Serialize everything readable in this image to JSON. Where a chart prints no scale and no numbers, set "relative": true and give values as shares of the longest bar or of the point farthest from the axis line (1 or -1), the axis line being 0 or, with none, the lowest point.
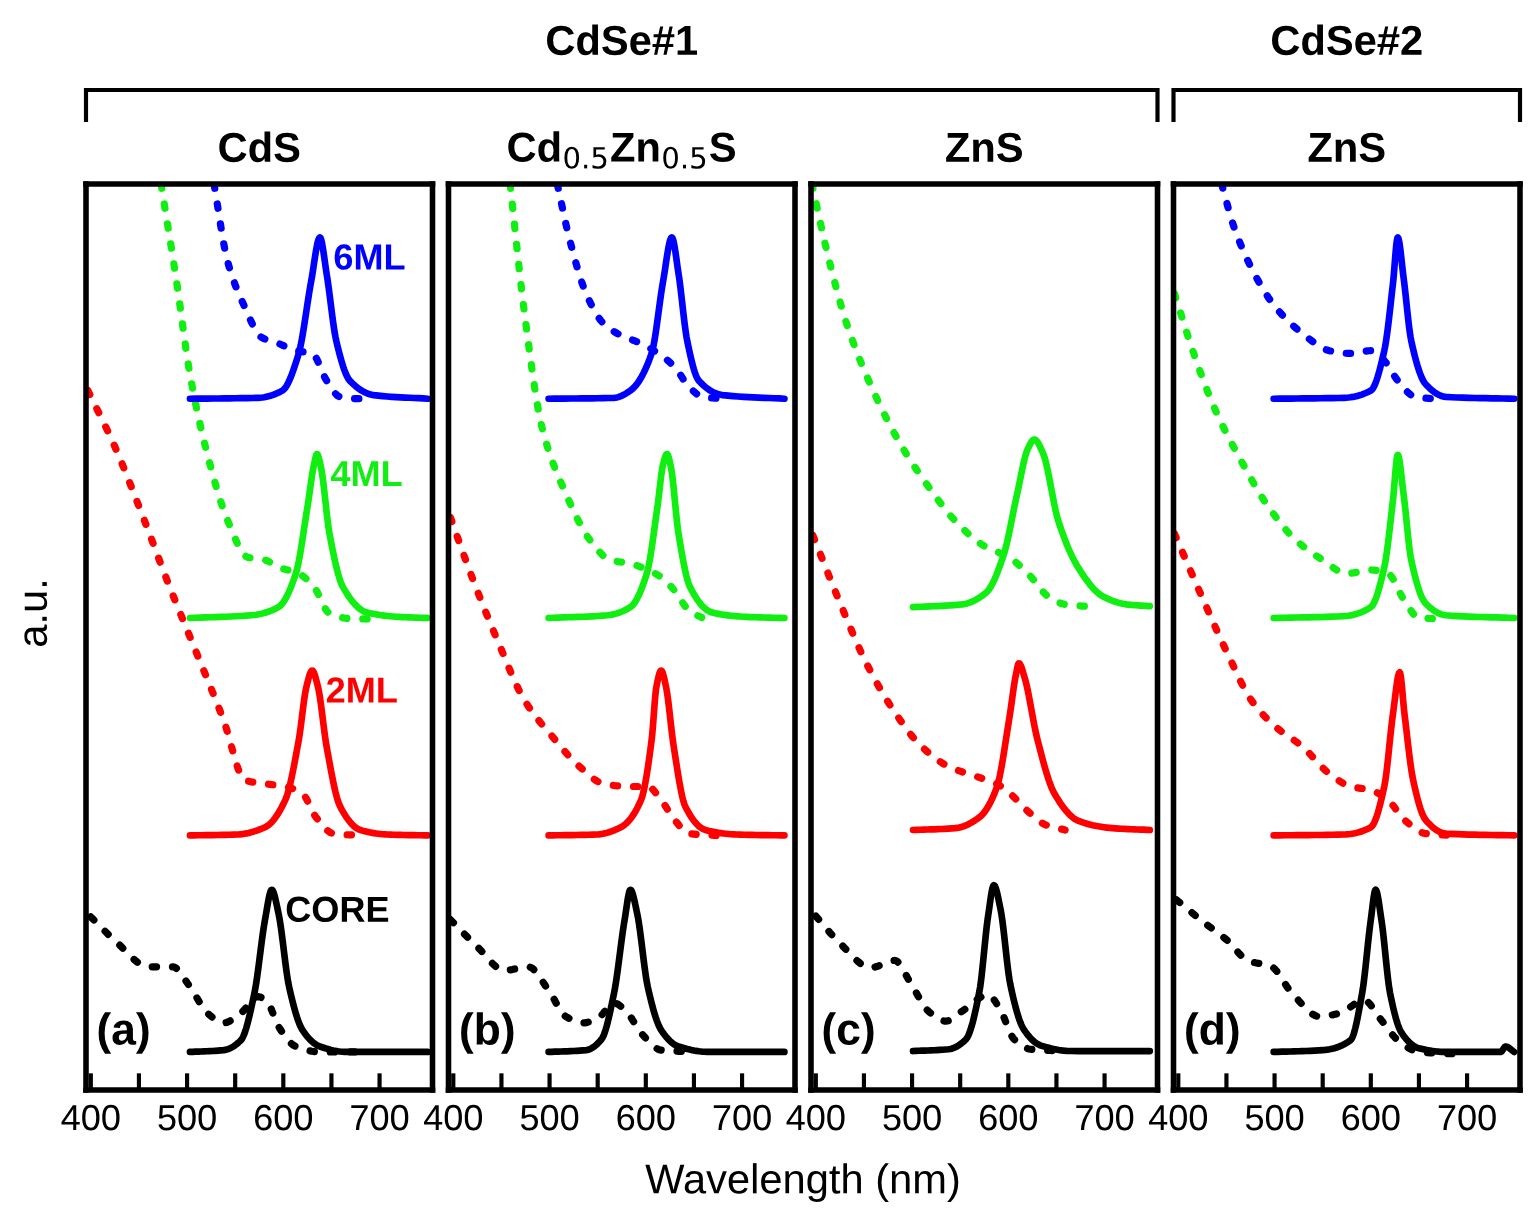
{
  "chart_data": [
    {
      "type": "line",
      "title": "CdS",
      "xlabel": "Wavelength (nm)",
      "ylabel": "a.u.",
      "relative": true,
      "annotations": [
        "(a)",
        "CdSe#1"
      ],
      "xlim": [
        395,
        755
      ],
      "xticks": [
        400,
        {
          "value": 450,
          "label": null
        },
        500,
        {
          "value": 550,
          "label": null
        },
        600,
        {
          "value": 650,
          "label": null
        },
        700
      ],
      "series": [
        {
          "name": "CORE",
          "color": "#000000",
          "line_style": "solid",
          "x": [
            503,
            538,
            556,
            570,
            581,
            588,
            595,
            606,
            620,
            638,
            666,
            750
          ],
          "values": [
            0.042,
            0.044,
            0.055,
            0.107,
            0.188,
            0.221,
            0.195,
            0.114,
            0.066,
            0.048,
            0.042,
            0.042
          ]
        },
        {
          "color": "#000000",
          "line_style": "dotted",
          "x": [
            400,
            425,
            460,
            485,
            503,
            521,
            538,
            556,
            574,
            584,
            595,
            613,
            638,
            687
          ],
          "values": [
            0.191,
            0.165,
            0.136,
            0.136,
            0.114,
            0.085,
            0.074,
            0.085,
            0.103,
            0.096,
            0.07,
            0.048,
            0.042,
            0.042
          ]
        },
        {
          "name": "2ML",
          "color": "#ff0000",
          "line_style": "solid",
          "x": [
            503,
            552,
            581,
            602,
            616,
            624,
            630,
            636,
            645,
            659,
            680,
            708,
            750
          ],
          "values": [
            0.281,
            0.282,
            0.29,
            0.32,
            0.386,
            0.445,
            0.463,
            0.445,
            0.379,
            0.313,
            0.287,
            0.282,
            0.281
          ]
        },
        {
          "color": "#ff0000",
          "line_style": "dotted",
          "x": [
            397,
            425,
            453,
            482,
            510,
            538,
            560,
            581,
            602,
            620,
            634,
            652,
            680
          ],
          "values": [
            0.772,
            0.71,
            0.636,
            0.555,
            0.482,
            0.408,
            0.342,
            0.338,
            0.335,
            0.327,
            0.301,
            0.283,
            0.281
          ]
        },
        {
          "name": "4ML",
          "color": "#11ee11",
          "line_style": "solid",
          "x": [
            503,
            567,
            595,
            613,
            625,
            632,
            635,
            639,
            648,
            662,
            687,
            723,
            750
          ],
          "values": [
            0.521,
            0.524,
            0.533,
            0.57,
            0.643,
            0.691,
            0.702,
            0.688,
            0.614,
            0.555,
            0.527,
            0.522,
            0.521
          ]
        },
        {
          "color": "#11ee11",
          "line_style": "dotted",
          "x": [
            473,
            489,
            503,
            521,
            542,
            563,
            581,
            595,
            616,
            632,
            648,
            673,
            694
          ],
          "values": [
            1.0,
            0.893,
            0.79,
            0.702,
            0.629,
            0.588,
            0.585,
            0.577,
            0.57,
            0.555,
            0.526,
            0.52,
            0.52
          ]
        },
        {
          "name": "6ML",
          "color": "#0000ff",
          "line_style": "solid",
          "x": [
            503,
            574,
            599,
            616,
            629,
            638,
            645,
            655,
            669,
            694,
            750
          ],
          "values": [
            0.763,
            0.764,
            0.772,
            0.813,
            0.893,
            0.941,
            0.901,
            0.827,
            0.783,
            0.767,
            0.763
          ]
        },
        {
          "color": "#0000ff",
          "line_style": "dotted",
          "x": [
            528,
            542,
            560,
            577,
            595,
            613,
            630,
            645,
            659,
            680,
            694
          ],
          "values": [
            1.0,
            0.915,
            0.864,
            0.831,
            0.824,
            0.816,
            0.813,
            0.783,
            0.765,
            0.763,
            0.763
          ]
        }
      ]
    },
    {
      "type": "line",
      "title": "Cd$_{0.5}$Zn$_{0.5}$S",
      "relative": true,
      "annotations": [
        "(b)"
      ],
      "xlim": [
        395,
        755
      ],
      "xticks": [
        400,
        {
          "value": 450,
          "label": null
        },
        500,
        {
          "value": 550,
          "label": null
        },
        600,
        {
          "value": 650,
          "label": null
        },
        700
      ],
      "series": [
        {
          "color": "#000000",
          "line_style": "solid",
          "x": [
            499,
            538,
            554,
            567,
            578,
            584,
            591,
            602,
            616,
            634,
            666,
            744
          ],
          "values": [
            0.042,
            0.044,
            0.056,
            0.107,
            0.188,
            0.221,
            0.195,
            0.114,
            0.066,
            0.048,
            0.042,
            0.042
          ]
        },
        {
          "color": "#000000",
          "line_style": "dotted",
          "x": [
            397,
            425,
            453,
            478,
            499,
            517,
            535,
            552,
            567,
            581,
            595,
            616,
            652
          ],
          "values": [
            0.188,
            0.158,
            0.132,
            0.136,
            0.11,
            0.081,
            0.074,
            0.081,
            0.096,
            0.085,
            0.063,
            0.044,
            0.042
          ]
        },
        {
          "color": "#ff0000",
          "line_style": "solid",
          "x": [
            499,
            549,
            574,
            595,
            606,
            611,
            616,
            621,
            629,
            641,
            662,
            694,
            744
          ],
          "values": [
            0.281,
            0.282,
            0.29,
            0.32,
            0.386,
            0.445,
            0.463,
            0.445,
            0.379,
            0.313,
            0.287,
            0.282,
            0.281
          ]
        },
        {
          "color": "#ff0000",
          "line_style": "dotted",
          "x": [
            397,
            418,
            446,
            474,
            503,
            531,
            556,
            581,
            602,
            616,
            630,
            645,
            673
          ],
          "values": [
            0.632,
            0.57,
            0.496,
            0.43,
            0.39,
            0.357,
            0.338,
            0.335,
            0.335,
            0.32,
            0.298,
            0.283,
            0.281
          ]
        },
        {
          "color": "#11ee11",
          "line_style": "solid",
          "x": [
            499,
            560,
            584,
            601,
            612,
            618,
            622,
            626,
            634,
            646,
            669,
            708,
            744
          ],
          "values": [
            0.521,
            0.524,
            0.533,
            0.57,
            0.643,
            0.691,
            0.702,
            0.688,
            0.614,
            0.555,
            0.527,
            0.522,
            0.521
          ]
        },
        {
          "color": "#11ee11",
          "line_style": "dotted",
          "x": [
            459,
            474,
            492,
            517,
            542,
            563,
            584,
            602,
            616,
            630,
            645,
            659
          ],
          "values": [
            1.0,
            0.857,
            0.732,
            0.658,
            0.607,
            0.585,
            0.581,
            0.574,
            0.566,
            0.551,
            0.529,
            0.521
          ]
        },
        {
          "color": "#0000ff",
          "line_style": "solid",
          "x": [
            499,
            567,
            584,
            606,
            618,
            627,
            634,
            643,
            655,
            680,
            744
          ],
          "values": [
            0.763,
            0.764,
            0.772,
            0.813,
            0.893,
            0.941,
            0.901,
            0.827,
            0.783,
            0.767,
            0.763
          ]
        },
        {
          "color": "#0000ff",
          "line_style": "dotted",
          "x": [
            508,
            521,
            538,
            556,
            574,
            595,
            613,
            630,
            645,
            659,
            680
          ],
          "values": [
            1.0,
            0.938,
            0.879,
            0.846,
            0.833,
            0.824,
            0.813,
            0.798,
            0.776,
            0.765,
            0.763
          ]
        }
      ]
    },
    {
      "type": "line",
      "title": "ZnS",
      "relative": true,
      "annotations": [
        "(c)"
      ],
      "xlim": [
        395,
        755
      ],
      "xticks": [
        400,
        {
          "value": 450,
          "label": null
        },
        500,
        {
          "value": 550,
          "label": null
        },
        600,
        {
          "value": 650,
          "label": null
        },
        700
      ],
      "series": [
        {
          "color": "#000000",
          "line_style": "solid",
          "x": [
            501,
            538,
            556,
            570,
            579,
            585,
            592,
            602,
            616,
            634,
            666,
            747
          ],
          "values": [
            0.043,
            0.045,
            0.056,
            0.109,
            0.192,
            0.226,
            0.199,
            0.117,
            0.067,
            0.049,
            0.043,
            0.043
          ]
        },
        {
          "color": "#000000",
          "line_style": "dotted",
          "x": [
            400,
            425,
            457,
            482,
            499,
            517,
            535,
            552,
            579,
            591,
            606,
            623,
            659
          ],
          "values": [
            0.192,
            0.162,
            0.135,
            0.143,
            0.117,
            0.087,
            0.076,
            0.087,
            0.105,
            0.09,
            0.056,
            0.045,
            0.043
          ]
        },
        {
          "color": "#ff0000",
          "line_style": "solid",
          "x": [
            501,
            545,
            570,
            588,
            601,
            608,
            611,
            617,
            630,
            648,
            673,
            708,
            747
          ],
          "values": [
            0.287,
            0.289,
            0.301,
            0.334,
            0.41,
            0.459,
            0.471,
            0.455,
            0.388,
            0.327,
            0.297,
            0.289,
            0.287
          ]
        },
        {
          "color": "#ff0000",
          "line_style": "dotted",
          "x": [
            397,
            425,
            453,
            482,
            510,
            538,
            567,
            588,
            602,
            620,
            638,
            659
          ],
          "values": [
            0.612,
            0.538,
            0.47,
            0.417,
            0.379,
            0.357,
            0.346,
            0.338,
            0.327,
            0.308,
            0.293,
            0.287
          ]
        },
        {
          "color": "#11ee11",
          "line_style": "solid",
          "x": [
            501,
            552,
            577,
            595,
            609,
            620,
            627,
            636,
            652,
            673,
            698,
            723,
            747
          ],
          "values": [
            0.533,
            0.536,
            0.549,
            0.59,
            0.657,
            0.707,
            0.718,
            0.703,
            0.628,
            0.576,
            0.545,
            0.536,
            0.534
          ]
        },
        {
          "color": "#11ee11",
          "line_style": "dotted",
          "x": [
            396,
            411,
            432,
            460,
            489,
            517,
            545,
            574,
            602,
            623,
            641,
            659,
            694
          ],
          "values": [
            1.0,
            0.928,
            0.846,
            0.771,
            0.711,
            0.666,
            0.628,
            0.601,
            0.587,
            0.567,
            0.545,
            0.536,
            0.533
          ]
        }
      ]
    },
    {
      "type": "line",
      "title": "ZnS",
      "relative": true,
      "annotations": [
        "(d)",
        "CdSe#2"
      ],
      "xlim": [
        395,
        755
      ],
      "xticks": [
        400,
        {
          "value": 450,
          "label": null
        },
        500,
        {
          "value": 550,
          "label": null
        },
        600,
        {
          "value": 650,
          "label": null
        },
        700
      ],
      "series": [
        {
          "color": "#000000",
          "line_style": "solid",
          "x": [
            499,
            550,
            579,
            591,
            600,
            605,
            611,
            620,
            632,
            650,
            678,
            735,
            740,
            749
          ],
          "values": [
            0.042,
            0.044,
            0.055,
            0.107,
            0.188,
            0.221,
            0.188,
            0.107,
            0.063,
            0.046,
            0.042,
            0.042,
            0.048,
            0.042
          ]
        },
        {
          "color": "#000000",
          "line_style": "dotted",
          "x": [
            398,
            423,
            451,
            472,
            497,
            518,
            547,
            568,
            593,
            611,
            628,
            650,
            685
          ],
          "values": [
            0.21,
            0.188,
            0.165,
            0.143,
            0.136,
            0.107,
            0.081,
            0.085,
            0.099,
            0.077,
            0.055,
            0.042,
            0.04
          ]
        },
        {
          "color": "#ff0000",
          "line_style": "solid",
          "x": [
            499,
            572,
            600,
            614,
            623,
            630,
            635,
            644,
            657,
            678,
            749
          ],
          "values": [
            0.281,
            0.282,
            0.29,
            0.335,
            0.415,
            0.461,
            0.415,
            0.342,
            0.298,
            0.283,
            0.281
          ]
        },
        {
          "color": "#ff0000",
          "line_style": "dotted",
          "x": [
            396,
            423,
            451,
            476,
            501,
            529,
            557,
            579,
            600,
            618,
            635,
            657,
            685
          ],
          "values": [
            0.614,
            0.548,
            0.482,
            0.43,
            0.401,
            0.379,
            0.349,
            0.335,
            0.331,
            0.32,
            0.298,
            0.283,
            0.281
          ]
        },
        {
          "color": "#11ee11",
          "line_style": "solid",
          "x": [
            499,
            572,
            600,
            614,
            623,
            628,
            634,
            642,
            657,
            678,
            749
          ],
          "values": [
            0.521,
            0.523,
            0.533,
            0.577,
            0.651,
            0.701,
            0.658,
            0.585,
            0.537,
            0.524,
            0.521
          ]
        },
        {
          "color": "#11ee11",
          "line_style": "dotted",
          "x": [
            396,
            416,
            437,
            465,
            494,
            522,
            550,
            575,
            600,
            618,
            635,
            650,
            678
          ],
          "values": [
            0.879,
            0.813,
            0.754,
            0.695,
            0.643,
            0.607,
            0.585,
            0.57,
            0.574,
            0.57,
            0.54,
            0.521,
            0.52
          ]
        },
        {
          "color": "#0000ff",
          "line_style": "solid",
          "x": [
            499,
            572,
            600,
            614,
            623,
            628,
            634,
            642,
            657,
            678,
            749
          ],
          "values": [
            0.763,
            0.764,
            0.772,
            0.816,
            0.89,
            0.941,
            0.897,
            0.827,
            0.779,
            0.765,
            0.763
          ]
        },
        {
          "color": "#0000ff",
          "line_style": "dotted",
          "x": [
            445,
            458,
            479,
            501,
            529,
            557,
            579,
            600,
            614,
            628,
            646,
            664
          ],
          "values": [
            1.0,
            0.952,
            0.901,
            0.864,
            0.835,
            0.816,
            0.813,
            0.816,
            0.805,
            0.783,
            0.765,
            0.763
          ]
        }
      ]
    }
  ]
}
